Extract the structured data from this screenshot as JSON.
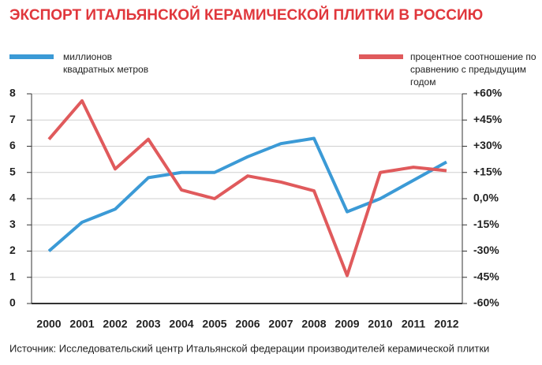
{
  "chart_data": {
    "type": "line",
    "title": "ЭКСПОРТ ИТАЛЬЯНСКОЙ КЕРАМИЧЕСКОЙ ПЛИТКИ В РОССИЮ",
    "source": "Источник: Исследовательский центр Итальянской федерации производителей керамической плитки",
    "categories": [
      "2000",
      "2001",
      "2002",
      "2003",
      "2004",
      "2005",
      "2006",
      "2007",
      "2008",
      "2009",
      "2010",
      "2011",
      "2012"
    ],
    "series": [
      {
        "name": "миллионов квадратных метров",
        "color": "#3b9ad6",
        "values": [
          2.0,
          3.1,
          3.6,
          4.8,
          5.0,
          5.0,
          5.6,
          6.1,
          6.3,
          3.5,
          4.0,
          4.7,
          5.4
        ]
      },
      {
        "name": "процентное соотношение по сравнению с предыдущим годом",
        "color": "#e05a5c",
        "axis": "y2",
        "values": [
          34,
          56,
          17,
          34,
          5,
          0,
          13,
          9.5,
          4.5,
          -44,
          15,
          18,
          16
        ]
      }
    ],
    "ylim": [
      0,
      8
    ],
    "yticks": [
      0,
      1,
      2,
      3,
      4,
      5,
      6,
      7,
      8
    ],
    "y2lim": [
      -60,
      60
    ],
    "y2ticks": [
      {
        "value": -60,
        "label": "-60%"
      },
      {
        "value": -45,
        "label": "-45%"
      },
      {
        "value": -30,
        "label": "-30%"
      },
      {
        "value": -15,
        "label": "-15%"
      },
      {
        "value": 0,
        "label": "0,0%"
      },
      {
        "value": 15,
        "label": "+15%"
      },
      {
        "value": 30,
        "label": "+30%"
      },
      {
        "value": 45,
        "label": "+45%"
      },
      {
        "value": 60,
        "label": "+60%"
      }
    ],
    "grid": true
  }
}
